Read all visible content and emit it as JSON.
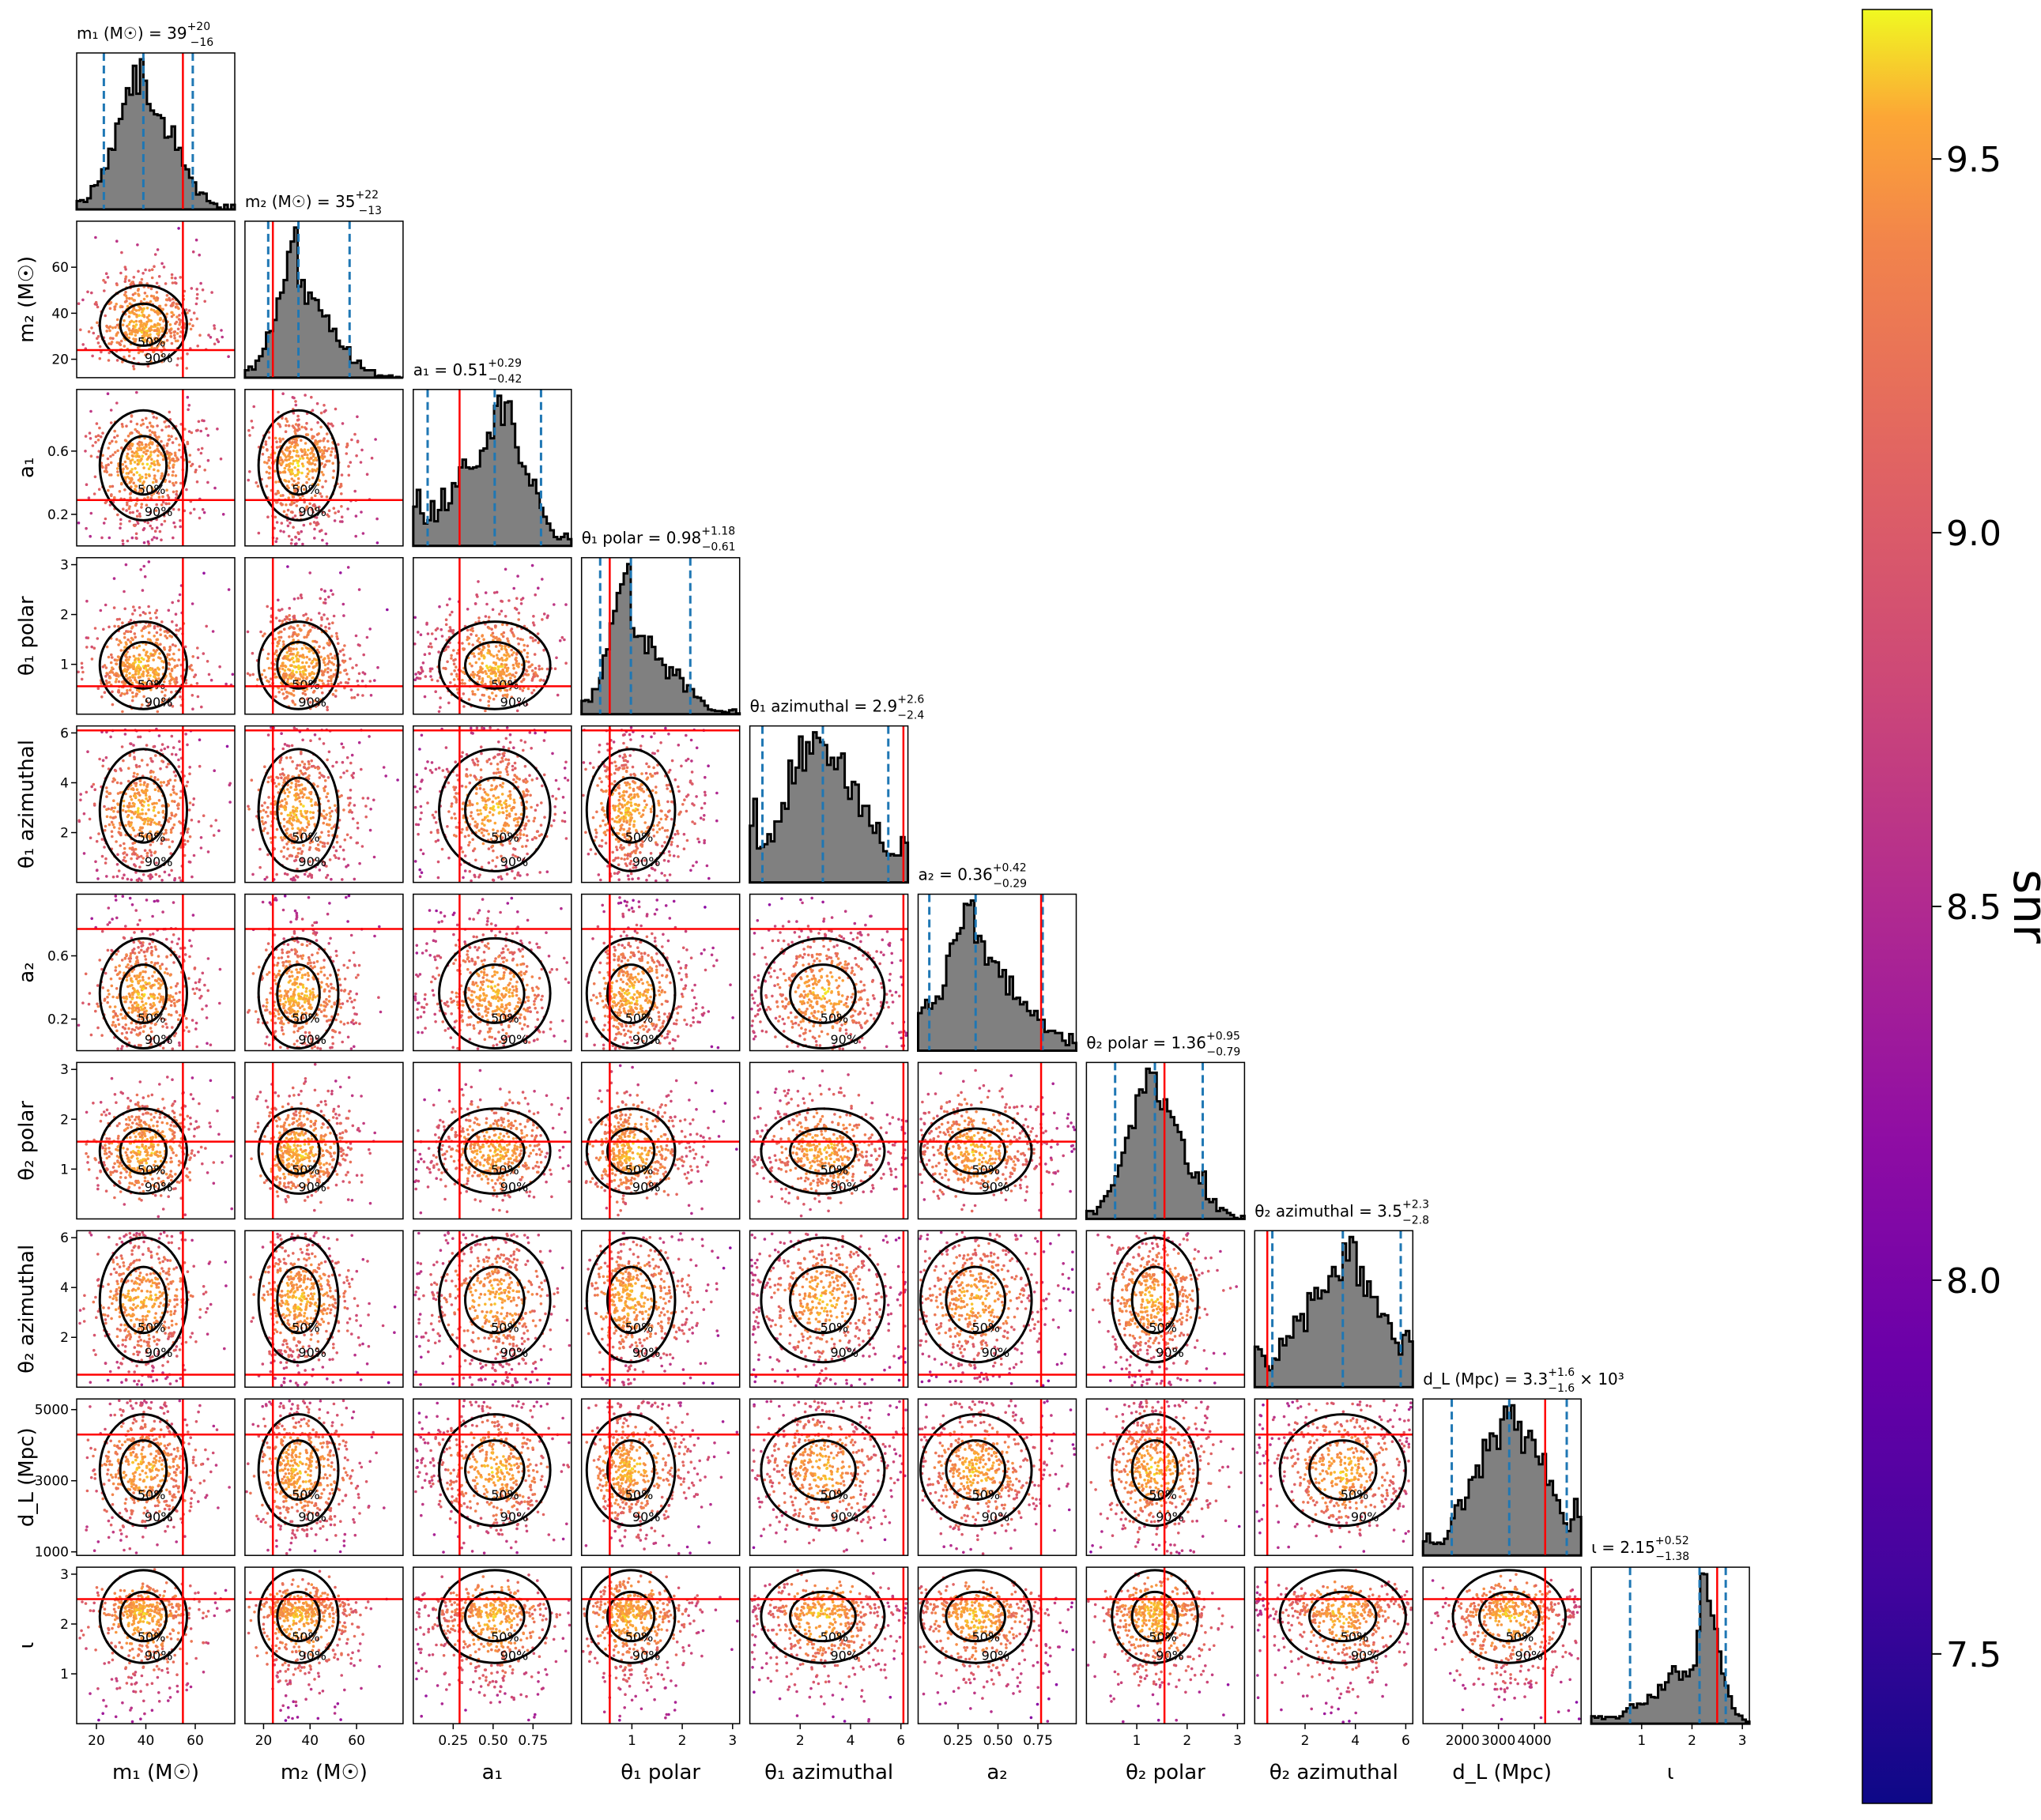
{
  "chart_data": {
    "type": "scatter",
    "title": "",
    "colorbar": {
      "label": "snr",
      "min": 7.3,
      "max": 9.7,
      "ticks": [
        "7.5",
        "8.0",
        "8.5",
        "9.0",
        "9.5"
      ],
      "tick_values": [
        7.5,
        8.0,
        8.5,
        9.0,
        9.5
      ],
      "colormap": "plasma"
    },
    "params": [
      {
        "key": "m1",
        "axis_label": "m₁ (M☉)",
        "title_left": "m₁ (M☉) = 39",
        "sup": "+20",
        "sub": "−16",
        "range": [
          12,
          76
        ],
        "ticks": [
          20,
          40,
          60
        ],
        "tick_labels": [
          "20",
          "40",
          "60"
        ],
        "truth": 55,
        "median": 39,
        "q_low": 23,
        "q_high": 59
      },
      {
        "key": "m2",
        "axis_label": "m₂ (M☉)",
        "title_left": "m₂ (M☉) = 35",
        "sup": "+22",
        "sub": "−13",
        "range": [
          12,
          80
        ],
        "ticks": [
          20,
          40,
          60
        ],
        "tick_labels": [
          "20",
          "40",
          "60"
        ],
        "truth": 24,
        "median": 35,
        "q_low": 22,
        "q_high": 57
      },
      {
        "key": "a1",
        "axis_label": "a₁",
        "title_left": "a₁ = 0.51",
        "sup": "+0.29",
        "sub": "−0.42",
        "range": [
          0.0,
          0.99
        ],
        "ticks": [
          0.25,
          0.5,
          0.75
        ],
        "tick_labels": [
          "0.25",
          "0.50",
          "0.75"
        ],
        "y_ticks": [
          0.2,
          0.6
        ],
        "y_tick_labels": [
          "0.2",
          "0.6"
        ],
        "truth": 0.29,
        "median": 0.51,
        "q_low": 0.09,
        "q_high": 0.8
      },
      {
        "key": "t1p",
        "axis_label": "θ₁ polar",
        "title_left": "θ₁ polar = 0.98",
        "sup": "+1.18",
        "sub": "−0.61",
        "range": [
          0.0,
          3.14
        ],
        "ticks": [
          1,
          2,
          3
        ],
        "tick_labels": [
          "1",
          "2",
          "3"
        ],
        "truth": 0.56,
        "median": 0.98,
        "q_low": 0.37,
        "q_high": 2.16
      },
      {
        "key": "t1a",
        "axis_label": "θ₁ azimuthal",
        "title_left": "θ₁ azimuthal = 2.9",
        "sup": "+2.6",
        "sub": "−2.4",
        "range": [
          0.0,
          6.28
        ],
        "ticks": [
          2,
          4,
          6
        ],
        "tick_labels": [
          "2",
          "4",
          "6"
        ],
        "truth": 6.1,
        "median": 2.9,
        "q_low": 0.5,
        "q_high": 5.5
      },
      {
        "key": "a2",
        "axis_label": "a₂",
        "title_left": "a₂ = 0.36",
        "sup": "+0.42",
        "sub": "−0.29",
        "range": [
          0.0,
          0.99
        ],
        "ticks": [
          0.25,
          0.5,
          0.75
        ],
        "tick_labels": [
          "0.25",
          "0.50",
          "0.75"
        ],
        "y_ticks": [
          0.2,
          0.6
        ],
        "y_tick_labels": [
          "0.2",
          "0.6"
        ],
        "truth": 0.77,
        "median": 0.36,
        "q_low": 0.07,
        "q_high": 0.78
      },
      {
        "key": "t2p",
        "axis_label": "θ₂ polar",
        "title_left": "θ₂ polar = 1.36",
        "sup": "+0.95",
        "sub": "−0.79",
        "range": [
          0.0,
          3.14
        ],
        "ticks": [
          1,
          2,
          3
        ],
        "tick_labels": [
          "1",
          "2",
          "3"
        ],
        "truth": 1.55,
        "median": 1.36,
        "q_low": 0.57,
        "q_high": 2.31
      },
      {
        "key": "t2a",
        "axis_label": "θ₂ azimuthal",
        "title_left": "θ₂ azimuthal = 3.5",
        "sup": "+2.3",
        "sub": "−2.8",
        "range": [
          0.0,
          6.28
        ],
        "ticks": [
          2,
          4,
          6
        ],
        "tick_labels": [
          "2",
          "4",
          "6"
        ],
        "truth": 0.5,
        "median": 3.5,
        "q_low": 0.7,
        "q_high": 5.8
      },
      {
        "key": "dL",
        "axis_label": "d_L (Mpc)",
        "title_left": "d_L (Mpc) = 3.3",
        "sup": "+1.6",
        "sub": "−1.6",
        "title_suffix": "× 10³",
        "range": [
          900,
          5300
        ],
        "ticks": [
          2000,
          3000,
          4000
        ],
        "tick_labels": [
          "2000",
          "3000",
          "4000"
        ],
        "y_ticks": [
          1000,
          3000,
          5000
        ],
        "y_tick_labels": [
          "1000",
          "3000",
          "5000"
        ],
        "truth": 4300,
        "median": 3300,
        "q_low": 1700,
        "q_high": 4900
      },
      {
        "key": "iota",
        "axis_label": "ι",
        "title_left": "ι = 2.15",
        "sup": "+0.52",
        "sub": "−1.38",
        "range": [
          0.0,
          3.14
        ],
        "ticks": [
          1,
          2,
          3
        ],
        "tick_labels": [
          "1",
          "2",
          "3"
        ],
        "truth": 2.5,
        "median": 2.15,
        "q_low": 0.77,
        "q_high": 2.67
      }
    ],
    "contour_levels": [
      "50%",
      "90%"
    ],
    "colors": {
      "histogram_fill": "#808080",
      "truth_line": "#ff0000",
      "quantile_line": "#1f77b4",
      "contour": "#000000"
    }
  }
}
